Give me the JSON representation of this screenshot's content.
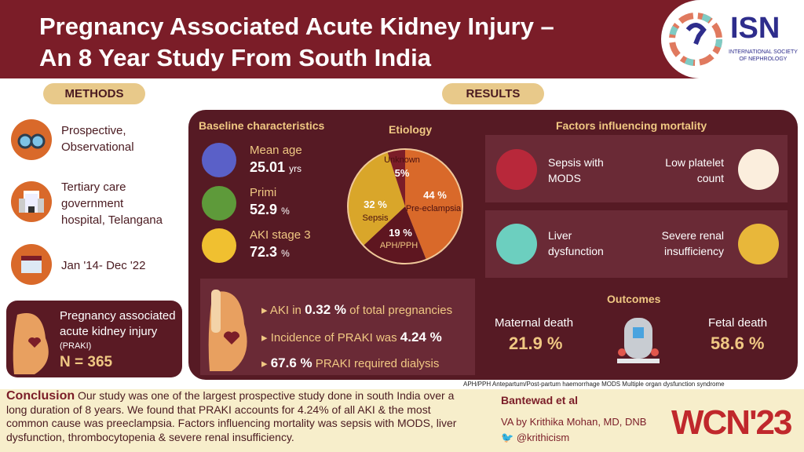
{
  "header": {
    "title_line1": "Pregnancy Associated Acute Kidney Injury –",
    "title_line2": "An 8 Year Study From South India",
    "logo_text": "ISN",
    "logo_subtitle_line1": "INTERNATIONAL SOCIETY",
    "logo_subtitle_line2": "OF NEPHROLOGY"
  },
  "methods": {
    "label": "METHODS",
    "items": [
      {
        "icon": "binoculars-icon",
        "line1": "Prospective,",
        "line2": "Observational"
      },
      {
        "icon": "hospital-icon",
        "line1": "Tertiary care",
        "line2": "government",
        "line3": "hospital, Telangana"
      },
      {
        "icon": "calendar-icon",
        "line1": "Jan '14- Dec '22"
      }
    ],
    "card": {
      "line1": "Pregnancy associated",
      "line2": "acute kidney injury",
      "abbr": "(PRAKI)",
      "n": "N = 365"
    }
  },
  "results": {
    "label": "RESULTS",
    "baseline": {
      "title": "Baseline characteristics",
      "items": [
        {
          "label": "Mean age",
          "value": "25.01",
          "unit": "yrs",
          "icon": "birthday-cake-icon"
        },
        {
          "label": "Primi",
          "value": "52.9",
          "unit": "%",
          "icon": "pregnant-woman-icon"
        },
        {
          "label": "AKI stage 3",
          "value": "72.3",
          "unit": "%",
          "icon": "kidney-icon"
        }
      ]
    },
    "stats": [
      {
        "pre": "AKI in ",
        "val": "0.32",
        "unit": " %",
        "post": " of total pregnancies"
      },
      {
        "pre": "Incidence of PRAKI was ",
        "val": "4.24",
        "unit": " %",
        "post": ""
      },
      {
        "pre": "",
        "val": "67.6",
        "unit": " %",
        "post": " PRAKI required dialysis"
      }
    ],
    "mortality": {
      "title": "Factors influencing mortality",
      "items": [
        {
          "l1": "Sepsis with",
          "l2": "MODS",
          "icon": "bacteria-icon"
        },
        {
          "l1": "Low platelet",
          "l2": "count",
          "icon": "platelet-icon"
        },
        {
          "l1": "Liver",
          "l2": "dysfunction",
          "icon": "liver-icon"
        },
        {
          "l1": "Severe renal",
          "l2": "insufficiency",
          "icon": "kidney-icon"
        }
      ]
    },
    "outcomes": {
      "title": "Outcomes",
      "maternal_label": "Maternal death",
      "maternal_value": "21.9 %",
      "fetal_label": "Fetal death",
      "fetal_value": "58.6 %"
    }
  },
  "chart_data": {
    "type": "pie",
    "title": "Etiology",
    "categories": [
      "Pre-eclampsia",
      "APH/PPH",
      "Sepsis",
      "Unknown"
    ],
    "values": [
      44,
      19,
      32,
      5
    ],
    "labels": [
      "44 %",
      "19 %",
      "32 %",
      "5%"
    ],
    "colors": [
      "#d9692a",
      "#5e1620",
      "#d9a62a",
      "#7b1d28"
    ]
  },
  "footer": {
    "footnote": "APH/PPH Antepartum/Post-partum haemorrhage  MODS  Multiple organ dysfunction syndrome",
    "conclusion_label": "Conclusion",
    "conclusion": " Our study was one of the largest prospective study done in south India over a long duration of 8 years. We found that PRAKI accounts for 4.24% of all AKI & the most common cause was preeclampsia. Factors influencing mortality was sepsis with MODS, liver dysfunction, thrombocytopenia & severe renal insufficiency.",
    "authors": "Bantewad et al",
    "va": "VA by Krithika Mohan, MD, DNB",
    "twitter": "@krithicism",
    "wcn": "WCN'23"
  }
}
